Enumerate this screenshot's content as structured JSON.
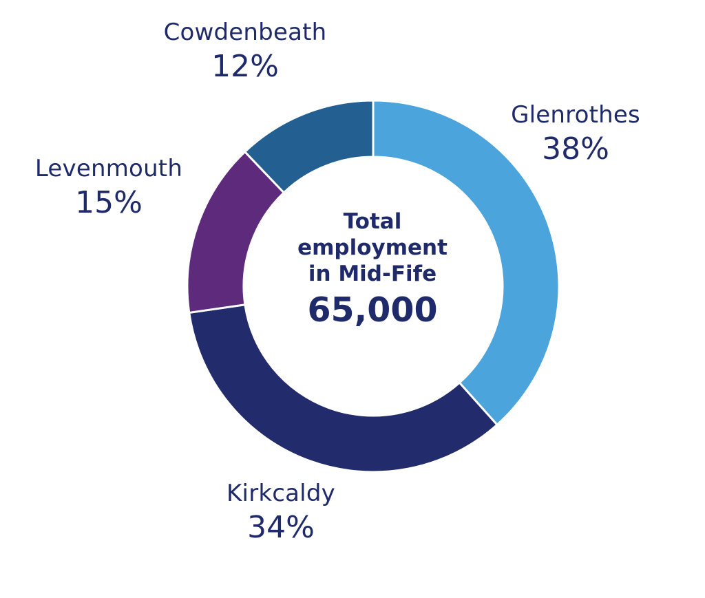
{
  "chart_data": {
    "type": "pie",
    "variant": "donut",
    "categories": [
      "Glenrothes",
      "Kirkcaldy",
      "Levenmouth",
      "Cowdenbeath"
    ],
    "values": [
      38,
      34,
      15,
      12
    ],
    "value_labels": [
      "38%",
      "34%",
      "15%",
      "12%"
    ],
    "colors": [
      "#4ba5dc",
      "#222b6b",
      "#5e2a7c",
      "#245f91"
    ],
    "separator_color": "#ffffff",
    "center": {
      "lines": [
        "Total",
        "employment",
        "in Mid-Fife"
      ],
      "value": "65,000"
    }
  }
}
